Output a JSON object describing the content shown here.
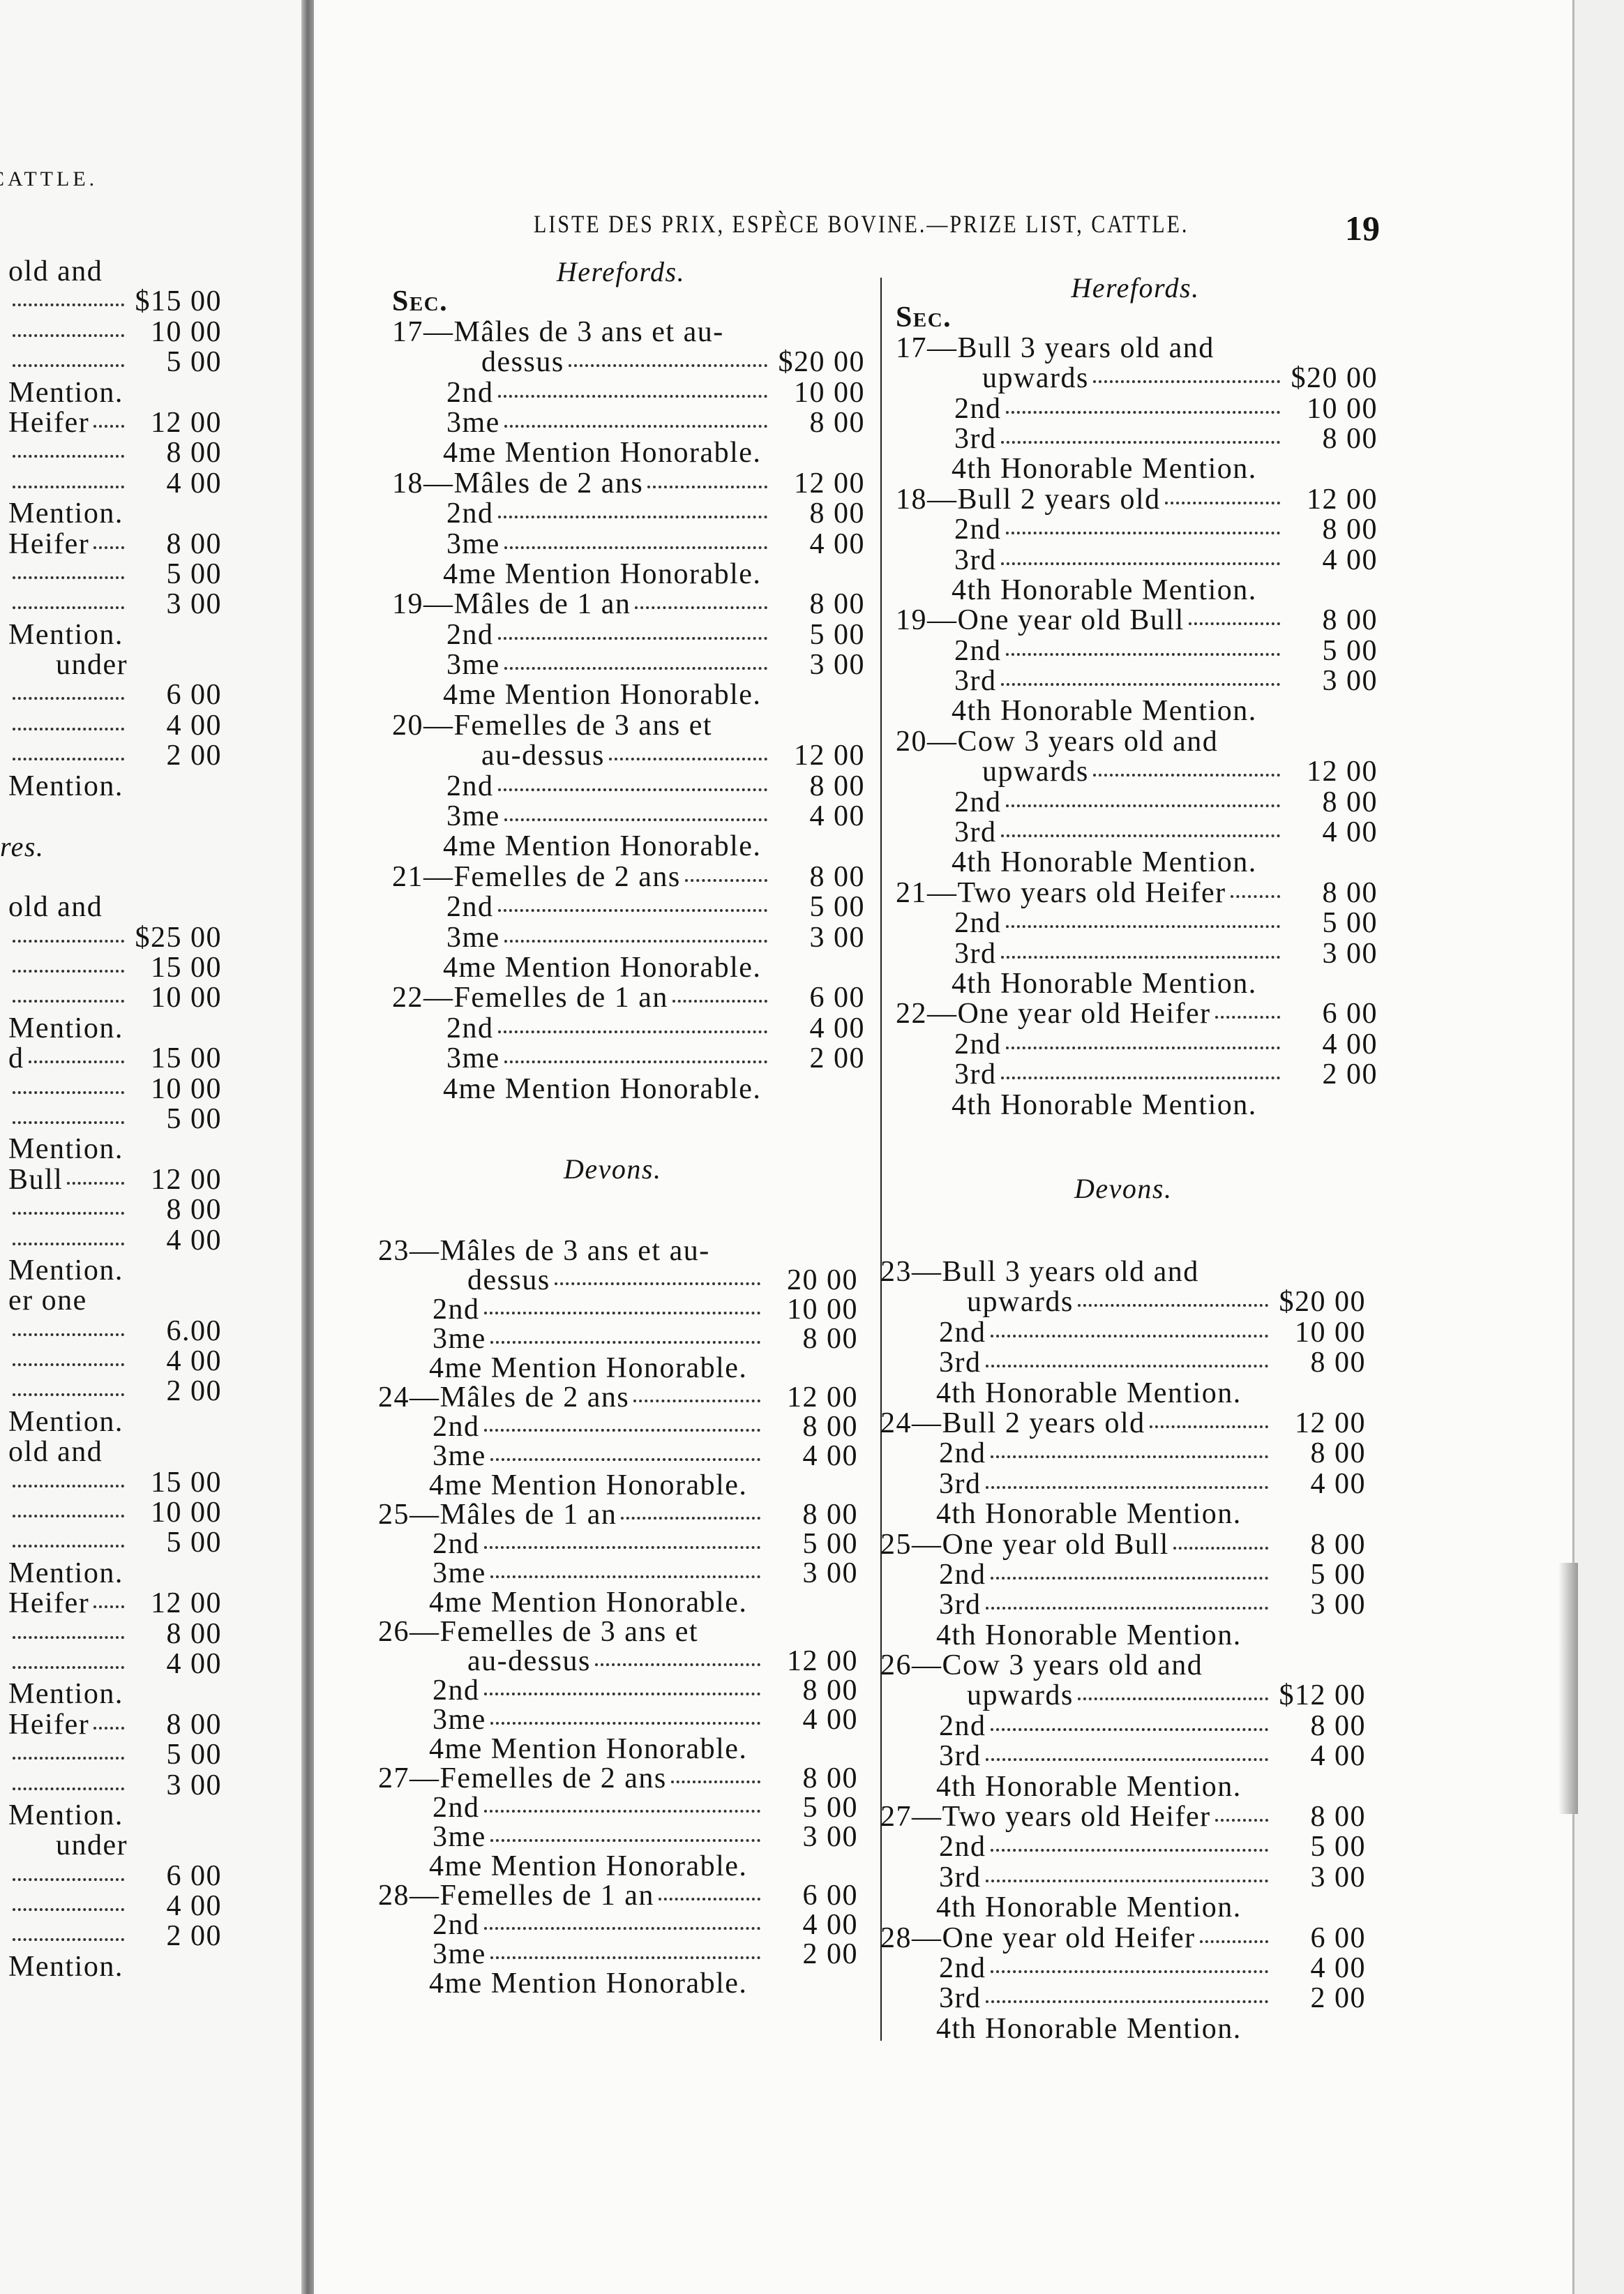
{
  "running_head": "LISTE DES PRIX, ESPÈCE BOVINE.—PRIZE LIST, CATTLE.",
  "page_number": "19",
  "left_page": {
    "running_head": "CATTLE.",
    "lines": [
      {
        "k": "e",
        "t": "old and"
      },
      {
        "k": "s",
        "t": "",
        "a": "$15 00"
      },
      {
        "k": "s",
        "t": "",
        "a": "10 00"
      },
      {
        "k": "s",
        "t": "",
        "a": "5 00"
      },
      {
        "k": "m",
        "t": "Mention."
      },
      {
        "k": "s",
        "t": "Heifer",
        "a": "12 00"
      },
      {
        "k": "s",
        "t": "",
        "a": "8 00"
      },
      {
        "k": "s",
        "t": "",
        "a": "4 00"
      },
      {
        "k": "m",
        "t": "Mention."
      },
      {
        "k": "s",
        "t": "Heifer",
        "a": "8 00"
      },
      {
        "k": "s",
        "t": "",
        "a": "5 00"
      },
      {
        "k": "s",
        "t": "",
        "a": "3 00"
      },
      {
        "k": "m",
        "t": "Mention."
      },
      {
        "k": "c",
        "t": "under"
      },
      {
        "k": "s",
        "t": "",
        "a": "6 00"
      },
      {
        "k": "s",
        "t": "",
        "a": "4 00"
      },
      {
        "k": "s",
        "t": "",
        "a": "2 00"
      },
      {
        "k": "m",
        "t": "Mention."
      },
      {
        "k": "blank",
        "t": ""
      },
      {
        "k": "h",
        "t": "res."
      },
      {
        "k": "blank",
        "t": ""
      },
      {
        "k": "e",
        "t": "old and"
      },
      {
        "k": "s",
        "t": "",
        "a": "$25 00"
      },
      {
        "k": "s",
        "t": "",
        "a": "15 00"
      },
      {
        "k": "s",
        "t": "",
        "a": "10 00"
      },
      {
        "k": "m",
        "t": "Mention."
      },
      {
        "k": "s",
        "t": "d",
        "a": "15 00"
      },
      {
        "k": "s",
        "t": "",
        "a": "10 00"
      },
      {
        "k": "s",
        "t": "",
        "a": "5 00"
      },
      {
        "k": "m",
        "t": "Mention."
      },
      {
        "k": "s",
        "t": "Bull",
        "a": "12 00"
      },
      {
        "k": "s",
        "t": "",
        "a": "8 00"
      },
      {
        "k": "s",
        "t": "",
        "a": "4 00"
      },
      {
        "k": "m",
        "t": "Mention."
      },
      {
        "k": "e",
        "t": "er one"
      },
      {
        "k": "s",
        "t": "",
        "a": "6.00"
      },
      {
        "k": "s",
        "t": "",
        "a": "4 00"
      },
      {
        "k": "s",
        "t": "",
        "a": "2 00"
      },
      {
        "k": "m",
        "t": "Mention."
      },
      {
        "k": "e",
        "t": "old and"
      },
      {
        "k": "s",
        "t": "",
        "a": "15 00"
      },
      {
        "k": "s",
        "t": "",
        "a": "10 00"
      },
      {
        "k": "s",
        "t": "",
        "a": "5 00"
      },
      {
        "k": "m",
        "t": "Mention."
      },
      {
        "k": "s",
        "t": "Heifer",
        "a": "12 00"
      },
      {
        "k": "s",
        "t": "",
        "a": "8 00"
      },
      {
        "k": "s",
        "t": "",
        "a": "4 00"
      },
      {
        "k": "m",
        "t": "Mention."
      },
      {
        "k": "s",
        "t": "Heifer",
        "a": "8 00"
      },
      {
        "k": "s",
        "t": "",
        "a": "5 00"
      },
      {
        "k": "s",
        "t": "",
        "a": "3 00"
      },
      {
        "k": "m",
        "t": "Mention."
      },
      {
        "k": "c",
        "t": "under"
      },
      {
        "k": "s",
        "t": "",
        "a": "6 00"
      },
      {
        "k": "s",
        "t": "",
        "a": "4 00"
      },
      {
        "k": "s",
        "t": "",
        "a": "2 00"
      },
      {
        "k": "m",
        "t": "Mention."
      }
    ]
  },
  "french": {
    "herefords": [
      {
        "k": "h",
        "t": "Herefords."
      },
      {
        "k": "sec",
        "t": "Sec."
      },
      {
        "k": "e",
        "t": "17—Mâles de 3 ans et au-"
      },
      {
        "k": "c",
        "t": "dessus",
        "a": "$20 00"
      },
      {
        "k": "s",
        "t": "2nd",
        "a": "10 00"
      },
      {
        "k": "s",
        "t": "3me",
        "a": "8 00"
      },
      {
        "k": "m",
        "t": "4me Mention Honorable."
      },
      {
        "k": "e",
        "t": "18—Mâles de 2 ans",
        "a": "12 00"
      },
      {
        "k": "s",
        "t": "2nd",
        "a": "8 00"
      },
      {
        "k": "s",
        "t": "3me",
        "a": "4 00"
      },
      {
        "k": "m",
        "t": "4me Mention Honorable."
      },
      {
        "k": "e",
        "t": "19—Mâles de 1 an",
        "a": "8 00"
      },
      {
        "k": "s",
        "t": "2nd",
        "a": "5 00"
      },
      {
        "k": "s",
        "t": "3me",
        "a": "3 00"
      },
      {
        "k": "m",
        "t": "4me Mention Honorable."
      },
      {
        "k": "e",
        "t": "20—Femelles de 3 ans et"
      },
      {
        "k": "c",
        "t": "au-dessus",
        "a": "12 00"
      },
      {
        "k": "s",
        "t": "2nd",
        "a": "8 00"
      },
      {
        "k": "s",
        "t": "3me",
        "a": "4 00"
      },
      {
        "k": "m",
        "t": "4me Mention Honorable."
      },
      {
        "k": "e",
        "t": "21—Femelles de 2 ans",
        "a": "8 00"
      },
      {
        "k": "s",
        "t": "2nd",
        "a": "5 00"
      },
      {
        "k": "s",
        "t": "3me",
        "a": "3 00"
      },
      {
        "k": "m",
        "t": "4me Mention Honorable."
      },
      {
        "k": "e",
        "t": "22—Femelles de 1 an",
        "a": "6 00"
      },
      {
        "k": "s",
        "t": "2nd",
        "a": "4 00"
      },
      {
        "k": "s",
        "t": "3me",
        "a": "2 00"
      },
      {
        "k": "m",
        "t": "4me Mention Honorable."
      }
    ],
    "devons_title": "Devons.",
    "devons": [
      {
        "k": "e",
        "t": "23—Mâles de 3 ans et au-"
      },
      {
        "k": "c",
        "t": "dessus",
        "a": "20 00"
      },
      {
        "k": "s",
        "t": "2nd",
        "a": "10 00"
      },
      {
        "k": "s",
        "t": "3me",
        "a": "8 00"
      },
      {
        "k": "m",
        "t": "4me Mention Honorable."
      },
      {
        "k": "e",
        "t": "24—Mâles de 2 ans",
        "a": "12 00"
      },
      {
        "k": "s",
        "t": "2nd",
        "a": "8 00"
      },
      {
        "k": "s",
        "t": "3me",
        "a": "4 00"
      },
      {
        "k": "m",
        "t": "4me Mention Honorable."
      },
      {
        "k": "e",
        "t": "25—Mâles de 1 an",
        "a": "8 00"
      },
      {
        "k": "s",
        "t": "2nd",
        "a": "5 00"
      },
      {
        "k": "s",
        "t": "3me",
        "a": "3 00"
      },
      {
        "k": "m",
        "t": "4me Mention Honorable."
      },
      {
        "k": "e",
        "t": "26—Femelles de 3 ans et"
      },
      {
        "k": "c",
        "t": "au-dessus",
        "a": "12 00"
      },
      {
        "k": "s",
        "t": "2nd",
        "a": "8 00"
      },
      {
        "k": "s",
        "t": "3me",
        "a": "4 00"
      },
      {
        "k": "m",
        "t": "4me Mention Honorable."
      },
      {
        "k": "e",
        "t": "27—Femelles de 2 ans",
        "a": "8 00"
      },
      {
        "k": "s",
        "t": "2nd",
        "a": "5 00"
      },
      {
        "k": "s",
        "t": "3me",
        "a": "3 00"
      },
      {
        "k": "m",
        "t": "4me Mention Honorable."
      },
      {
        "k": "e",
        "t": "28—Femelles de 1 an",
        "a": "6 00"
      },
      {
        "k": "s",
        "t": "2nd",
        "a": "4 00"
      },
      {
        "k": "s",
        "t": "3me",
        "a": "2 00"
      },
      {
        "k": "m",
        "t": "4me Mention Honorable."
      }
    ]
  },
  "english": {
    "herefords": [
      {
        "k": "h",
        "t": "Herefords."
      },
      {
        "k": "sec",
        "t": "Sec."
      },
      {
        "k": "e",
        "t": "17—Bull 3 years old and"
      },
      {
        "k": "c",
        "t": "upwards",
        "a": "$20 00"
      },
      {
        "k": "s",
        "t": "2nd",
        "a": "10 00"
      },
      {
        "k": "s",
        "t": "3rd",
        "a": "8 00"
      },
      {
        "k": "m",
        "t": "4th Honorable Mention."
      },
      {
        "k": "e",
        "t": "18—Bull 2 years old",
        "a": "12 00"
      },
      {
        "k": "s",
        "t": "2nd",
        "a": "8 00"
      },
      {
        "k": "s",
        "t": "3rd",
        "a": "4 00"
      },
      {
        "k": "m",
        "t": "4th Honorable Mention."
      },
      {
        "k": "e",
        "t": "19—One year old Bull",
        "a": "8 00"
      },
      {
        "k": "s",
        "t": "2nd",
        "a": "5 00"
      },
      {
        "k": "s",
        "t": "3rd",
        "a": "3 00"
      },
      {
        "k": "m",
        "t": "4th Honorable Mention."
      },
      {
        "k": "e",
        "t": "20—Cow 3 years old and"
      },
      {
        "k": "c",
        "t": "upwards",
        "a": "12 00"
      },
      {
        "k": "s",
        "t": "2nd",
        "a": "8 00"
      },
      {
        "k": "s",
        "t": "3rd",
        "a": "4 00"
      },
      {
        "k": "m",
        "t": "4th Honorable Mention."
      },
      {
        "k": "e",
        "t": "21—Two years old Heifer",
        "a": "8 00"
      },
      {
        "k": "s",
        "t": "2nd",
        "a": "5 00"
      },
      {
        "k": "s",
        "t": "3rd",
        "a": "3 00"
      },
      {
        "k": "m",
        "t": "4th Honorable Mention."
      },
      {
        "k": "e",
        "t": "22—One year old Heifer",
        "a": "6 00"
      },
      {
        "k": "s",
        "t": "2nd",
        "a": "4 00"
      },
      {
        "k": "s",
        "t": "3rd",
        "a": "2 00"
      },
      {
        "k": "m",
        "t": "4th Honorable Mention."
      }
    ],
    "devons_title": "Devons.",
    "devons": [
      {
        "k": "e",
        "t": "23—Bull 3 years old and"
      },
      {
        "k": "c",
        "t": "upwards",
        "a": "$20 00"
      },
      {
        "k": "s",
        "t": "2nd",
        "a": "10 00"
      },
      {
        "k": "s",
        "t": "3rd",
        "a": "8 00"
      },
      {
        "k": "m",
        "t": "4th Honorable Mention."
      },
      {
        "k": "e",
        "t": "24—Bull 2 years old",
        "a": "12 00"
      },
      {
        "k": "s",
        "t": "2nd",
        "a": "8 00"
      },
      {
        "k": "s",
        "t": "3rd",
        "a": "4 00"
      },
      {
        "k": "m",
        "t": "4th Honorable Mention."
      },
      {
        "k": "e",
        "t": "25—One year old Bull",
        "a": "8 00"
      },
      {
        "k": "s",
        "t": "2nd",
        "a": "5 00"
      },
      {
        "k": "s",
        "t": "3rd",
        "a": "3 00"
      },
      {
        "k": "m",
        "t": "4th Honorable Mention."
      },
      {
        "k": "e",
        "t": "26—Cow 3 years old and"
      },
      {
        "k": "c",
        "t": "upwards",
        "a": "$12 00"
      },
      {
        "k": "s",
        "t": "2nd",
        "a": "8 00"
      },
      {
        "k": "s",
        "t": "3rd",
        "a": "4 00"
      },
      {
        "k": "m",
        "t": "4th Honorable Mention."
      },
      {
        "k": "e",
        "t": "27—Two years old Heifer",
        "a": "8 00"
      },
      {
        "k": "s",
        "t": "2nd",
        "a": "5 00"
      },
      {
        "k": "s",
        "t": "3rd",
        "a": "3 00"
      },
      {
        "k": "m",
        "t": "4th Honorable Mention."
      },
      {
        "k": "e",
        "t": "28—One year old Heifer",
        "a": "6 00"
      },
      {
        "k": "s",
        "t": "2nd",
        "a": "4 00"
      },
      {
        "k": "s",
        "t": "3rd",
        "a": "2 00"
      },
      {
        "k": "m",
        "t": "4th Honorable Mention."
      }
    ]
  }
}
